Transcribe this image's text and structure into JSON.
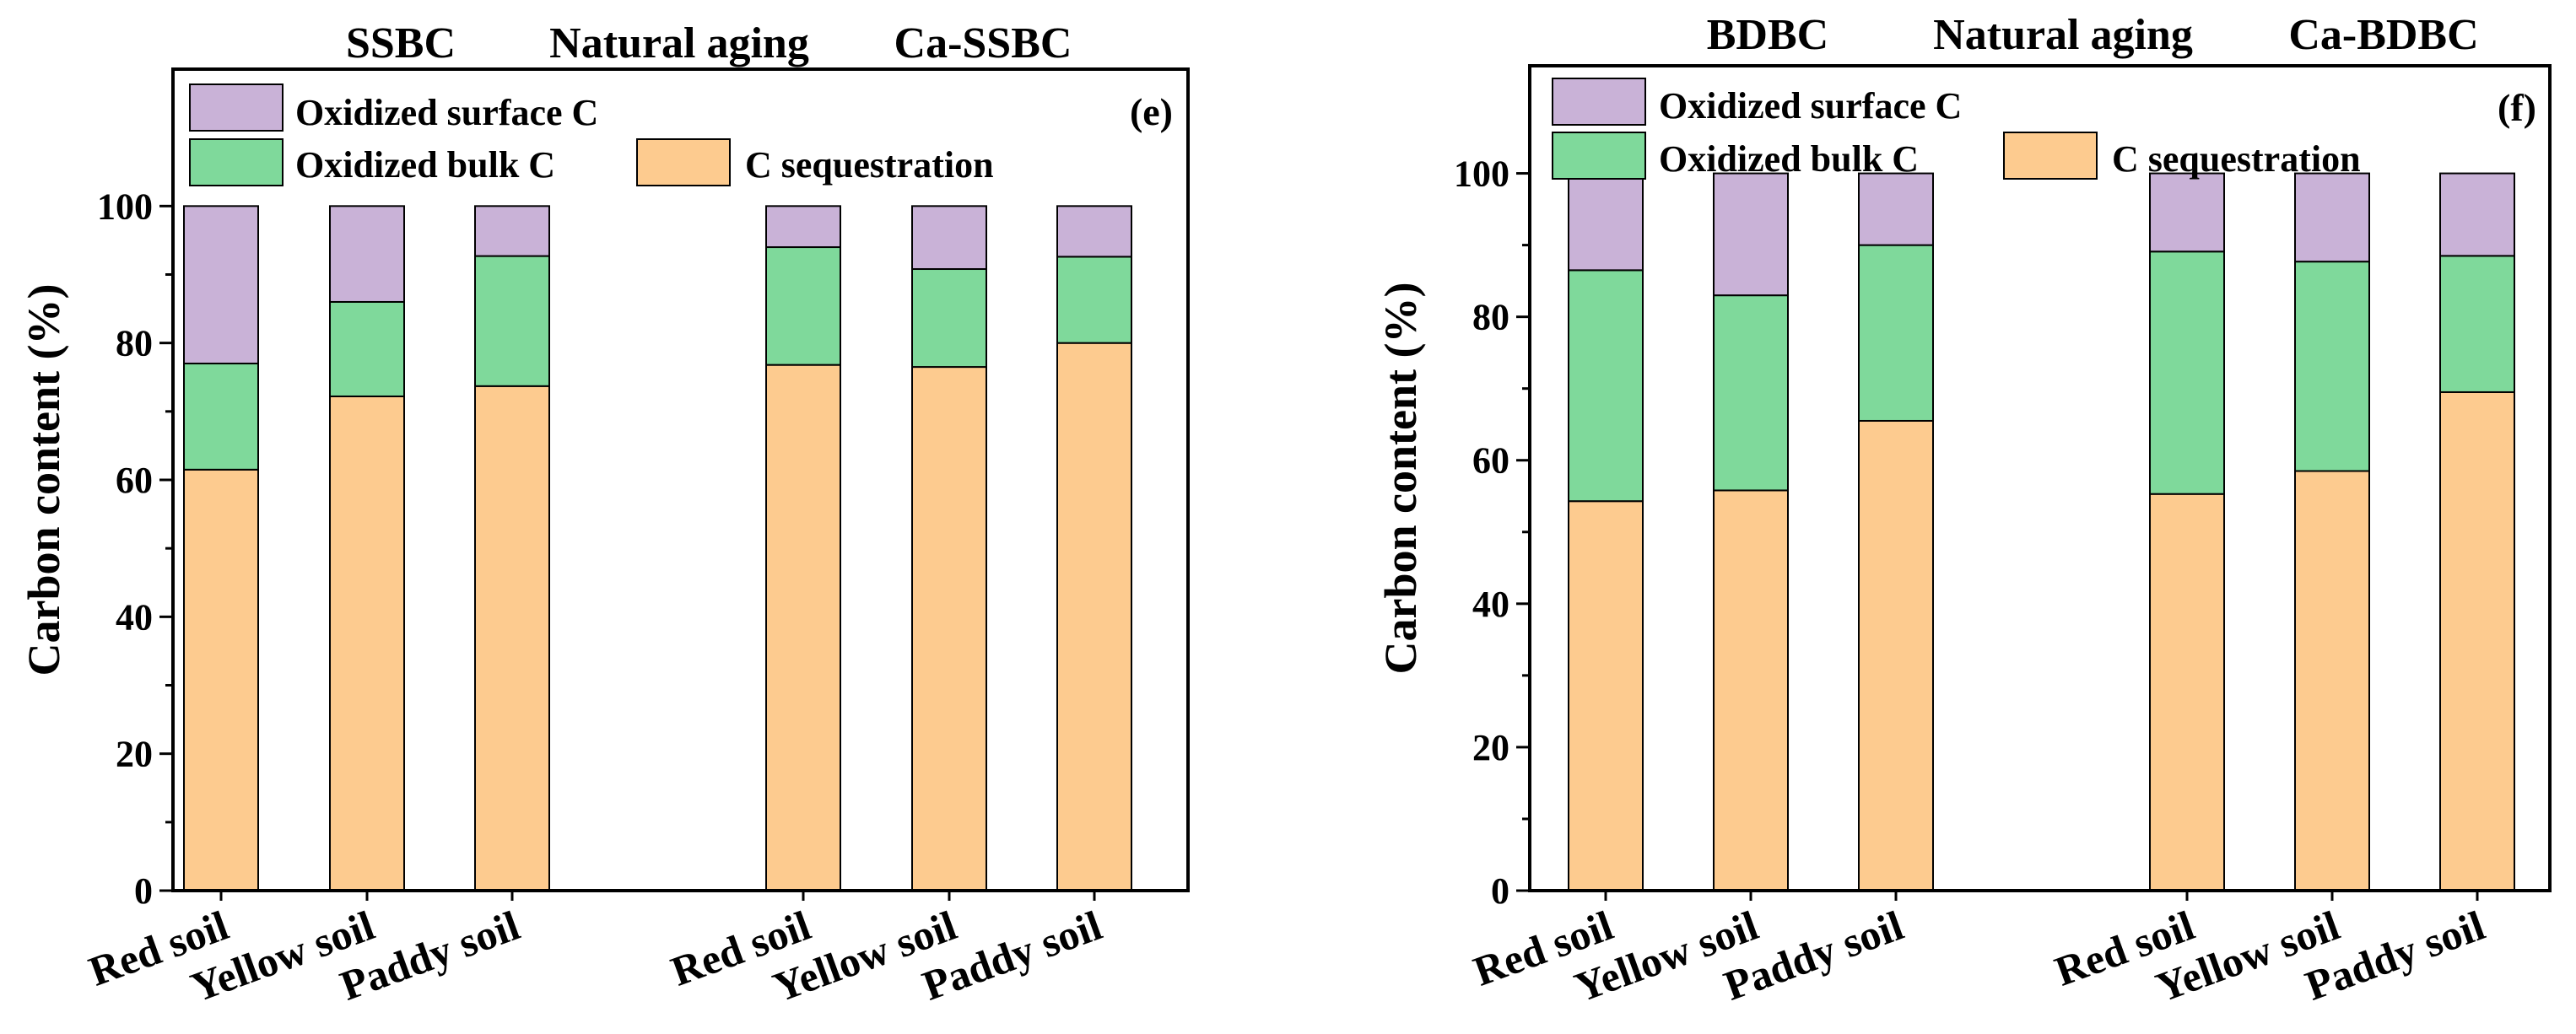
{
  "chart_data": [
    {
      "type": "bar",
      "stacked": true,
      "panel_label": "(e)",
      "group_labels": [
        "SSBC",
        "Natural aging",
        "Ca-SSBC"
      ],
      "categories": [
        "Red soil",
        "Yellow soil",
        "Paddy soil",
        "Red soil",
        "Yellow soil",
        "Paddy soil"
      ],
      "series": [
        {
          "name": "C sequestration",
          "color": "#fdcb8f",
          "values": [
            61.5,
            72.2,
            73.7,
            76.8,
            76.5,
            80.0
          ]
        },
        {
          "name": "Oxidized bulk C",
          "color": "#7fd99b",
          "values": [
            15.5,
            13.8,
            19.0,
            17.2,
            14.3,
            12.6
          ]
        },
        {
          "name": "Oxidized surface C",
          "color": "#c9b2d7",
          "values": [
            23.0,
            14.0,
            7.3,
            6.0,
            9.2,
            7.4
          ]
        }
      ],
      "legend": [
        "Oxidized surface C",
        "Oxidized bulk C",
        "C sequestration"
      ],
      "ylabel": "Carbon content (%)",
      "xlabel": "",
      "ylim": [
        0,
        120
      ],
      "yticks": [
        0,
        20,
        40,
        60,
        80,
        100
      ],
      "grid": false,
      "legend_position": "top-left"
    },
    {
      "type": "bar",
      "stacked": true,
      "panel_label": "(f)",
      "group_labels": [
        "BDBC",
        "Natural aging",
        "Ca-BDBC"
      ],
      "categories": [
        "Red soil",
        "Yellow soil",
        "Paddy soil",
        "Red soil",
        "Yellow soil",
        "Paddy soil"
      ],
      "series": [
        {
          "name": "C sequestration",
          "color": "#fdcb8f",
          "values": [
            54.3,
            55.8,
            65.5,
            55.3,
            58.5,
            69.5
          ]
        },
        {
          "name": "Oxidized bulk C",
          "color": "#7fd99b",
          "values": [
            32.2,
            27.2,
            24.5,
            33.8,
            29.2,
            19.0
          ]
        },
        {
          "name": "Oxidized surface C",
          "color": "#c9b2d7",
          "values": [
            13.5,
            17.0,
            10.0,
            10.9,
            12.3,
            11.5
          ]
        }
      ],
      "legend": [
        "Oxidized surface C",
        "Oxidized bulk C",
        "C sequestration"
      ],
      "ylabel": "Carbon content (%)",
      "xlabel": "",
      "ylim": [
        0,
        115
      ],
      "yticks": [
        0,
        20,
        40,
        60,
        80,
        100
      ],
      "grid": false,
      "legend_position": "top-left"
    }
  ]
}
